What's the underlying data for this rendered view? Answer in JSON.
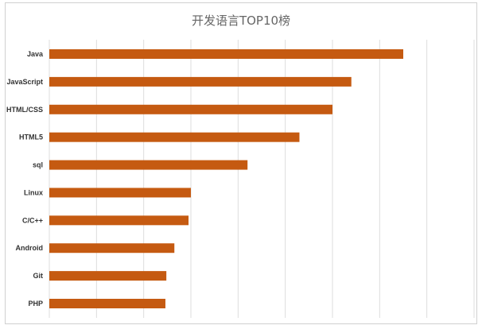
{
  "chart_data": {
    "type": "bar",
    "orientation": "horizontal",
    "title": "开发语言TOP10榜",
    "categories": [
      "Java",
      "JavaScript",
      "HTML/CSS",
      "HTML5",
      "sql",
      "Linux",
      "C/C++",
      "Android",
      "Git",
      "PHP"
    ],
    "values": [
      75,
      64,
      60,
      53,
      42,
      30,
      29.5,
      26.5,
      24.8,
      24.6
    ],
    "xlim": [
      0,
      90
    ],
    "x_gridline_step": 10,
    "grid": true,
    "legend": "none",
    "bar_color": "#C55A11"
  }
}
